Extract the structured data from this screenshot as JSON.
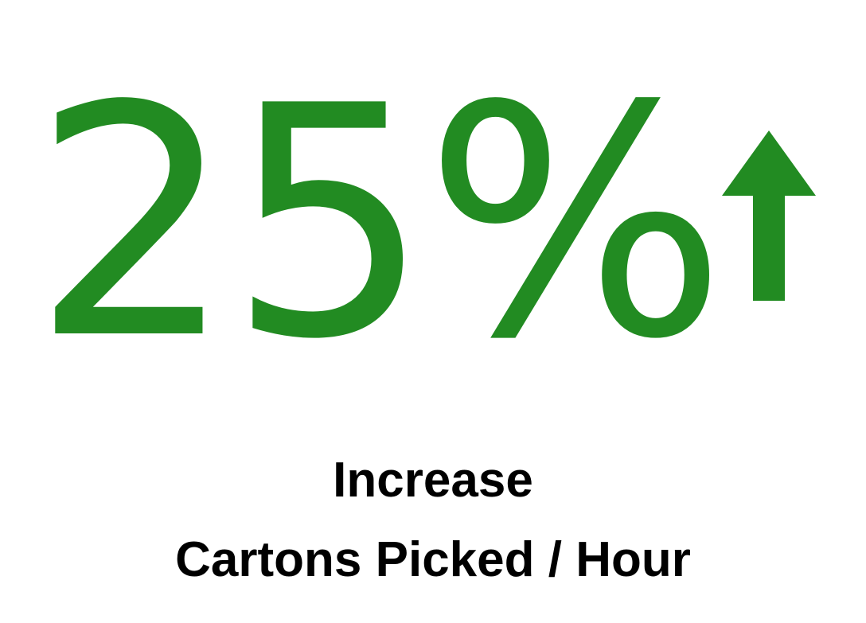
{
  "kpi": {
    "value": "25%",
    "trend_icon": "arrow-up-icon",
    "accent_color": "#228b22",
    "label_line1": "Increase",
    "label_line2": "Cartons Picked / Hour"
  }
}
